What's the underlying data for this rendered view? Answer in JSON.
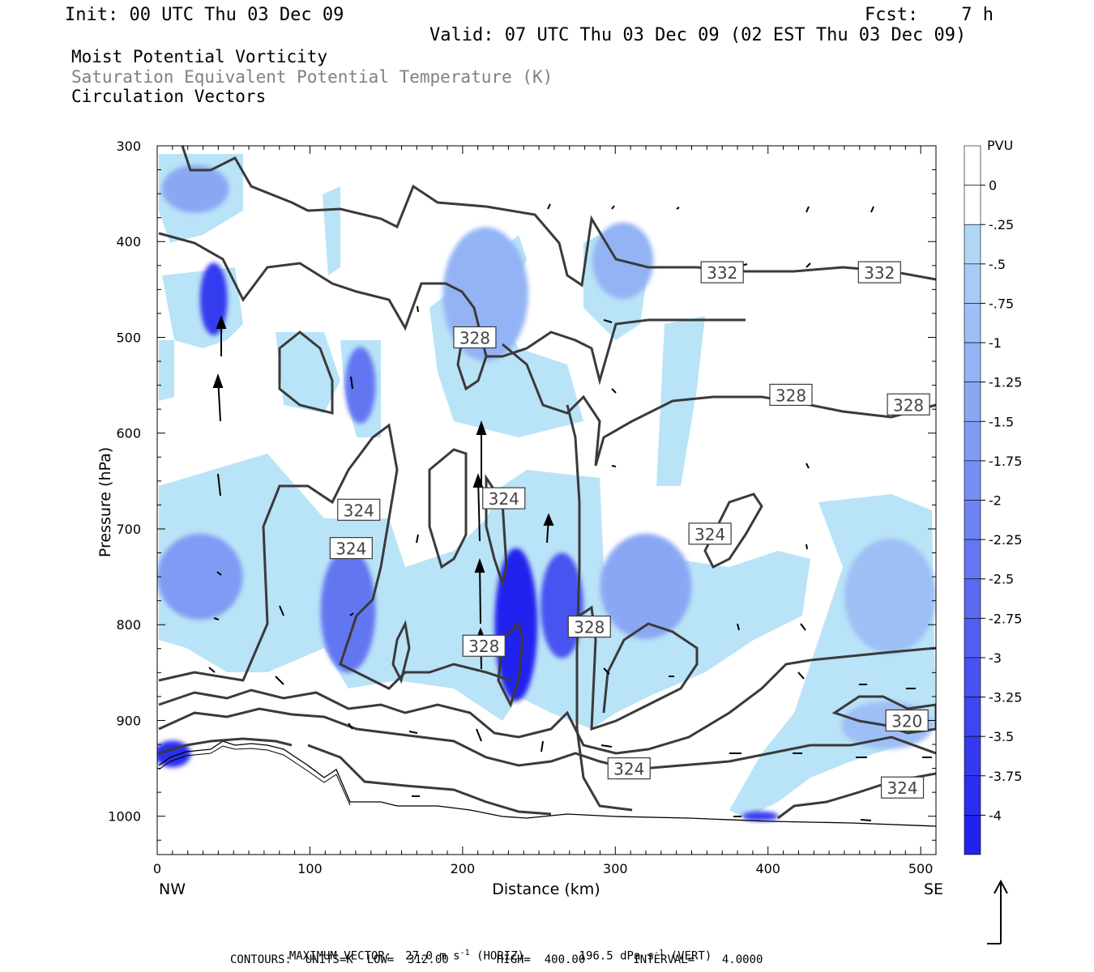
{
  "header": {
    "init": "Init: 00 UTC Thu 03 Dec 09",
    "fcst": "Fcst:    7 h",
    "valid": "Valid: 07 UTC Thu 03 Dec 09 (02 EST Thu 03 Dec 09)",
    "fields": [
      "Moist Potential Vorticity",
      "Saturation Equivalent Potential Temperature (K)",
      "Circulation Vectors"
    ]
  },
  "footer": {
    "max_vector_label": "MAXIMUM VECTOR:",
    "horiz_value": "27.0 m s",
    "horiz_suffix": " (HORIZ)",
    "vert_value": "196.5 dPa s",
    "vert_suffix": " (VERT)",
    "exp": "-1",
    "contours": "CONTOURS:  UNITS=K  LOW=  312.00       HIGH=  400.00       INTERVAL=    4.0000"
  },
  "colors": {
    "mpv_light": "#b9e3f7",
    "mpv_mid": "#9aa7f0",
    "mpv_dark": "#2222ee",
    "contour": "#3a3a3a"
  },
  "chart_data": {
    "type": "heatmap",
    "xlabel": "Distance (km)",
    "ylabel": "Pressure (hPa)",
    "xlim": [
      0,
      510
    ],
    "ylim": [
      1040,
      300
    ],
    "x_ticks": [
      0,
      100,
      200,
      300,
      400,
      500
    ],
    "x_tick_labels": [
      "0",
      "100",
      "200",
      "300",
      "400",
      "500"
    ],
    "y_ticks": [
      300,
      400,
      500,
      600,
      700,
      800,
      900,
      1000
    ],
    "y_tick_labels": [
      "300",
      "400",
      "500",
      "600",
      "700",
      "800",
      "900",
      "1000"
    ],
    "x_end_labels": {
      "left": "NW",
      "right": "SE"
    },
    "colorbar": {
      "unit": "PVU",
      "levels": [
        "0",
        "-.25",
        "-.5",
        "-.75",
        "-1",
        "-1.25",
        "-1.5",
        "-1.75",
        "-2",
        "-2.25",
        "-2.5",
        "-2.75",
        "-3",
        "-3.25",
        "-3.5",
        "-3.75",
        "-4"
      ]
    },
    "contour_labels": [
      {
        "text": "332",
        "x": 370,
        "p": 432
      },
      {
        "text": "332",
        "x": 473,
        "p": 432
      },
      {
        "text": "328",
        "x": 208,
        "p": 500
      },
      {
        "text": "328",
        "x": 415,
        "p": 560
      },
      {
        "text": "328",
        "x": 492,
        "p": 570
      },
      {
        "text": "324",
        "x": 132,
        "p": 680
      },
      {
        "text": "324",
        "x": 227,
        "p": 668
      },
      {
        "text": "324",
        "x": 127,
        "p": 720
      },
      {
        "text": "324",
        "x": 362,
        "p": 705
      },
      {
        "text": "328",
        "x": 283,
        "p": 802
      },
      {
        "text": "328",
        "x": 214,
        "p": 822
      },
      {
        "text": "320",
        "x": 491,
        "p": 900
      },
      {
        "text": "324",
        "x": 309,
        "p": 950
      },
      {
        "text": "324",
        "x": 488,
        "p": 970
      }
    ],
    "mpv_regions": [
      {
        "x": 25,
        "p": 345,
        "rx": 22,
        "rp": 25,
        "level": -1.25
      },
      {
        "x": 37,
        "p": 460,
        "rx": 9,
        "rp": 38,
        "level": -3.5
      },
      {
        "x": 133,
        "p": 550,
        "rx": 10,
        "rp": 40,
        "level": -2.25
      },
      {
        "x": 28,
        "p": 750,
        "rx": 28,
        "rp": 45,
        "level": -1.5
      },
      {
        "x": 125,
        "p": 785,
        "rx": 18,
        "rp": 65,
        "level": -2.25
      },
      {
        "x": 235,
        "p": 800,
        "rx": 14,
        "rp": 80,
        "level": -4.0
      },
      {
        "x": 265,
        "p": 780,
        "rx": 14,
        "rp": 55,
        "level": -3.0
      },
      {
        "x": 320,
        "p": 760,
        "rx": 30,
        "rp": 55,
        "level": -1.25
      },
      {
        "x": 215,
        "p": 455,
        "rx": 28,
        "rp": 70,
        "level": -1.0
      },
      {
        "x": 305,
        "p": 420,
        "rx": 20,
        "rp": 40,
        "level": -1.0
      },
      {
        "x": 10,
        "p": 935,
        "rx": 12,
        "rp": 14,
        "level": -3.75
      },
      {
        "x": 395,
        "p": 1000,
        "rx": 12,
        "rp": 5,
        "level": -3.5
      },
      {
        "x": 480,
        "p": 770,
        "rx": 30,
        "rp": 60,
        "level": -0.75
      },
      {
        "x": 478,
        "p": 905,
        "rx": 30,
        "rp": 25,
        "level": -0.75
      }
    ],
    "max_vector": {
      "horiz": 27.0,
      "horiz_unit": "m s-1",
      "vert": 196.5,
      "vert_unit": "dPa s-1"
    },
    "contour_params": {
      "units": "K",
      "low": 312.0,
      "high": 400.0,
      "interval": 4.0
    }
  }
}
